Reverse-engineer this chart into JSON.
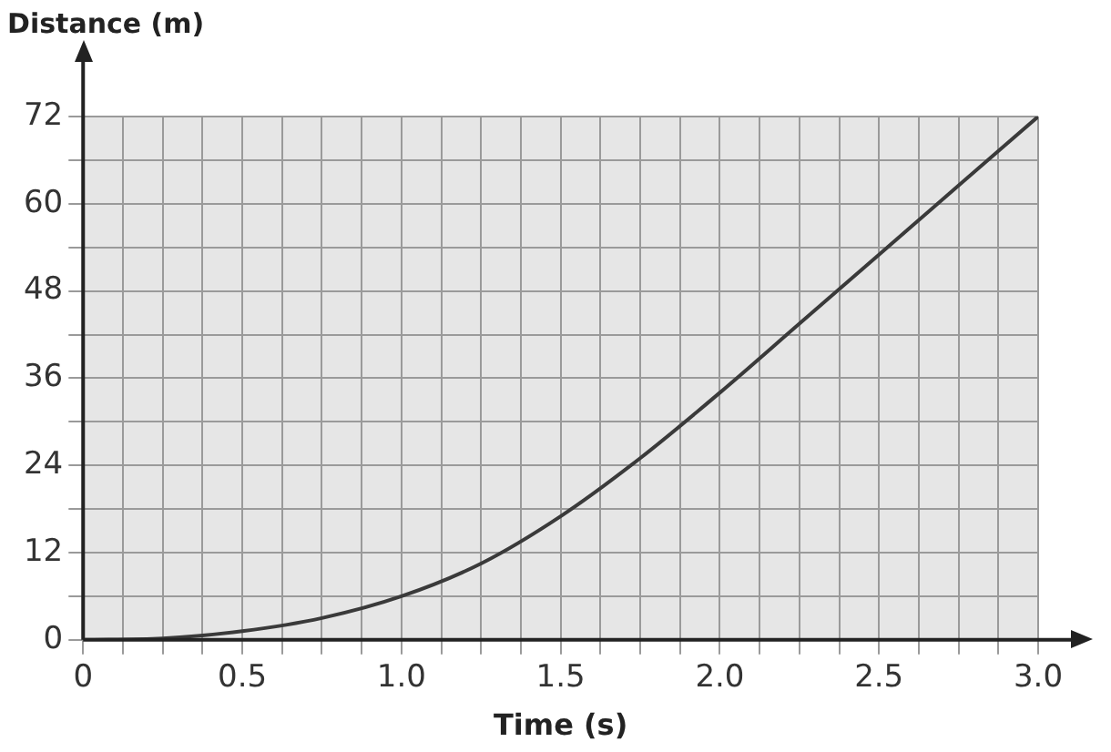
{
  "chart_data": {
    "type": "line",
    "xlabel": "Time (s)",
    "ylabel": "Distance (m)",
    "x": [
      0,
      0.25,
      0.5,
      0.75,
      1.0,
      1.25,
      1.5,
      1.75,
      2.0,
      2.25,
      2.5,
      2.75,
      3.0
    ],
    "series": [
      {
        "color": "#3a3a3a",
        "values": [
          0,
          0.2,
          1.2,
          3,
          6,
          10.5,
          17,
          25,
          34,
          43.5,
          53,
          62.5,
          72
        ]
      }
    ],
    "xlim": [
      0,
      3
    ],
    "ylim": [
      0,
      72
    ],
    "xticks": [
      0,
      {
        "value": 0.125,
        "label": null
      },
      {
        "value": 0.25,
        "label": null
      },
      {
        "value": 0.375,
        "label": null
      },
      0.5,
      {
        "value": 0.625,
        "label": null
      },
      {
        "value": 0.75,
        "label": null
      },
      {
        "value": 0.875,
        "label": null
      },
      {
        "value": 1,
        "label": "1.0"
      },
      {
        "value": 1.125,
        "label": null
      },
      {
        "value": 1.25,
        "label": null
      },
      {
        "value": 1.375,
        "label": null
      },
      1.5,
      {
        "value": 1.625,
        "label": null
      },
      {
        "value": 1.75,
        "label": null
      },
      {
        "value": 1.875,
        "label": null
      },
      {
        "value": 2,
        "label": "2.0"
      },
      {
        "value": 2.125,
        "label": null
      },
      {
        "value": 2.25,
        "label": null
      },
      {
        "value": 2.375,
        "label": null
      },
      2.5,
      {
        "value": 2.625,
        "label": null
      },
      {
        "value": 2.75,
        "label": null
      },
      {
        "value": 2.875,
        "label": null
      },
      {
        "value": 3,
        "label": "3.0"
      }
    ],
    "yticks": [
      0,
      {
        "value": 6,
        "label": null
      },
      12,
      {
        "value": 18,
        "label": null
      },
      24,
      {
        "value": 30,
        "label": null
      },
      36,
      {
        "value": 42,
        "label": null
      },
      48,
      {
        "value": 54,
        "label": null
      },
      60,
      {
        "value": 66,
        "label": null
      },
      72
    ],
    "grid": true,
    "legend": false,
    "marker": "none",
    "line_style": "solid"
  }
}
